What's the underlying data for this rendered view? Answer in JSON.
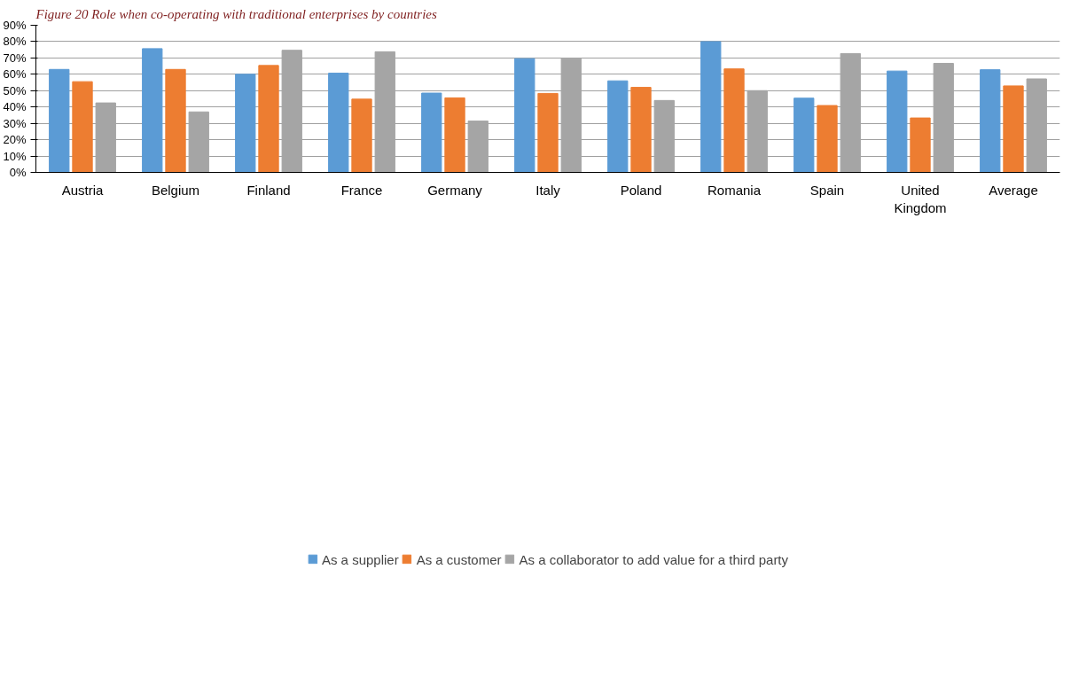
{
  "chart_data": {
    "type": "bar",
    "title": "Figure 20 Role when co-operating with traditional enterprises by countries",
    "categories": [
      "Austria",
      "Belgium",
      "Finland",
      "France",
      "Germany",
      "Italy",
      "Poland",
      "Romania",
      "Spain",
      "United Kingdom",
      "Average"
    ],
    "series": [
      {
        "name": "As a supplier",
        "color": "#5b9bd5",
        "values": [
          63,
          75.7,
          60,
          60.7,
          48.5,
          69.6,
          56,
          80,
          45.4,
          62,
          62.8
        ]
      },
      {
        "name": "As a customer",
        "color": "#ed7d31",
        "values": [
          55.5,
          63,
          65.4,
          44.8,
          45.6,
          48.3,
          52,
          63.3,
          40.9,
          33.3,
          52.9
        ]
      },
      {
        "name": "As a collaborator to add value for a third party",
        "color": "#a5a5a5",
        "values": [
          42.5,
          37,
          74.7,
          73.8,
          31.4,
          69.6,
          44,
          50,
          72.7,
          66.7,
          57.2
        ]
      }
    ],
    "ylim": [
      0,
      90
    ],
    "yticks": [
      {
        "value": 0,
        "label": "0%"
      },
      {
        "value": 10,
        "label": "10%"
      },
      {
        "value": 20,
        "label": "20%"
      },
      {
        "value": 30,
        "label": "30%"
      },
      {
        "value": 40,
        "label": "40%"
      },
      {
        "value": 50,
        "label": "50%"
      },
      {
        "value": 60,
        "label": "60%"
      },
      {
        "value": 70,
        "label": "70%"
      },
      {
        "value": 80,
        "label": "80%"
      },
      {
        "value": 90,
        "label": "90%"
      }
    ],
    "grid": "y",
    "legend": "bottom"
  }
}
